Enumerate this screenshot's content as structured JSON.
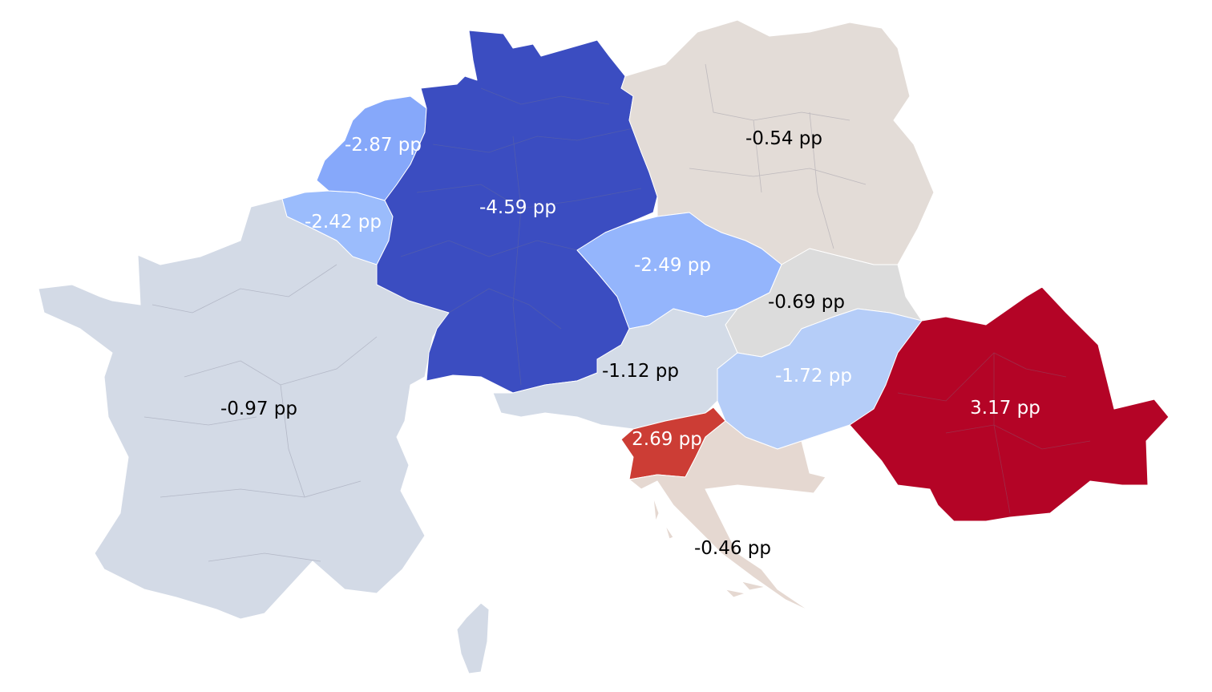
{
  "map": {
    "countries": [
      {
        "id": "netherlands",
        "label": "-2.87 pp",
        "color": "#86a8fa",
        "text_color": "#ffffff"
      },
      {
        "id": "belgium",
        "label": "-2.42 pp",
        "color": "#9bbcfc",
        "text_color": "#ffffff"
      },
      {
        "id": "germany",
        "label": "-4.59 pp",
        "color": "#3b4dc1",
        "text_color": "#ffffff"
      },
      {
        "id": "poland",
        "label": "-0.54 pp",
        "color": "#e3dcd7",
        "text_color": "#000000"
      },
      {
        "id": "czechia",
        "label": "-2.49 pp",
        "color": "#94b5fc",
        "text_color": "#ffffff"
      },
      {
        "id": "slovakia",
        "label": "-0.69 pp",
        "color": "#dcdcdc",
        "text_color": "#000000"
      },
      {
        "id": "austria",
        "label": "-1.12 pp",
        "color": "#d3dbe7",
        "text_color": "#000000"
      },
      {
        "id": "hungary",
        "label": "-1.72 pp",
        "color": "#b5cdf8",
        "text_color": "#ffffff"
      },
      {
        "id": "romania",
        "label": "3.17 pp",
        "color": "#b40426",
        "text_color": "#ffffff"
      },
      {
        "id": "slovenia",
        "label": "2.69 pp",
        "color": "#cc3d35",
        "text_color": "#ffffff"
      },
      {
        "id": "croatia",
        "label": "-0.46 pp",
        "color": "#e5d8d1",
        "text_color": "#000000"
      },
      {
        "id": "france",
        "label": "-0.97 pp",
        "color": "#d3dae6",
        "text_color": "#000000"
      }
    ]
  }
}
